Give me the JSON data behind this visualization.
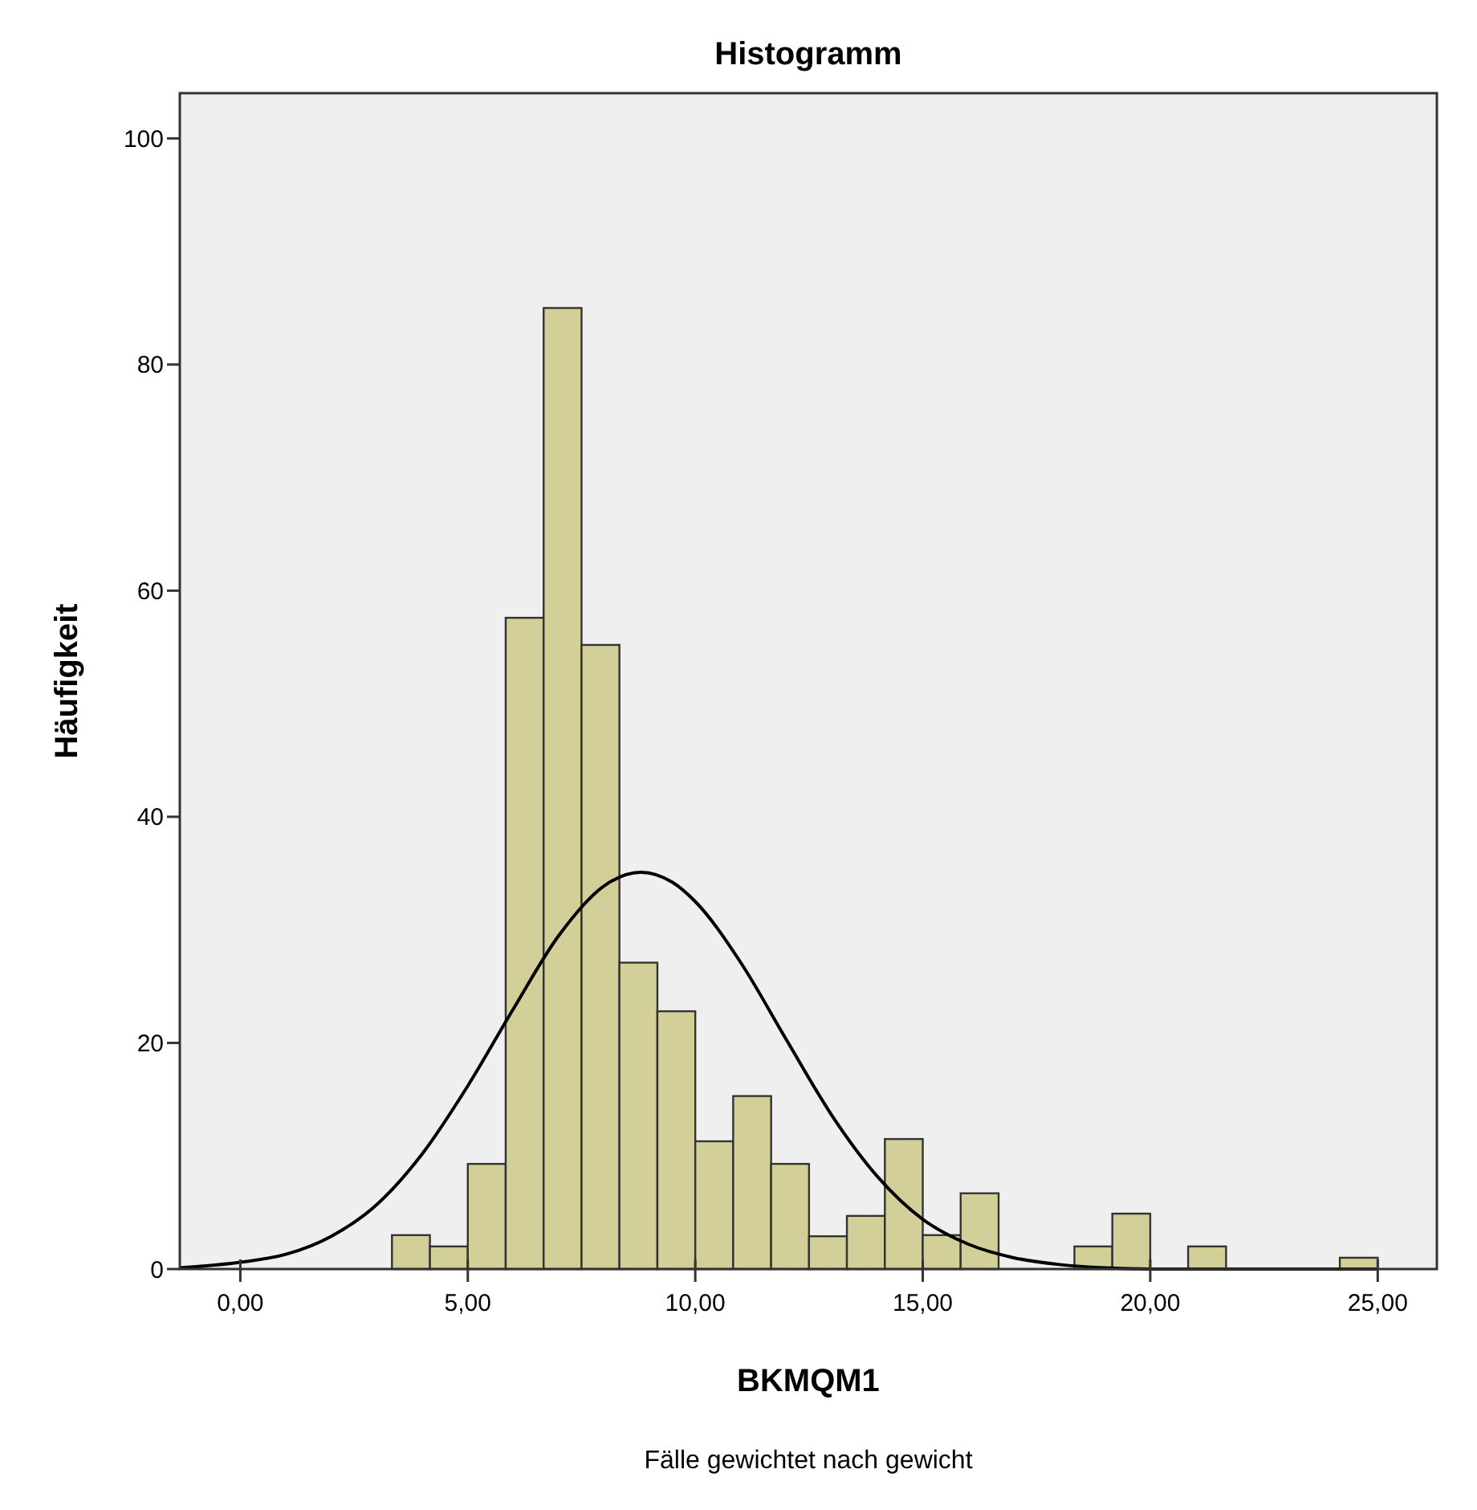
{
  "chart_data": {
    "type": "histogram",
    "title": "Histogramm",
    "xlabel": "BKMQM1",
    "ylabel": "Häufigkeit",
    "annotations": [
      "Fälle gewichtet nach gewicht"
    ],
    "bins": [
      3.333,
      4.167,
      5,
      5.833,
      6.667,
      7.5,
      8.333,
      9.167,
      10,
      10.833,
      11.667,
      12.5,
      13.333,
      14.167,
      15,
      15.833,
      16.667,
      17.5,
      18.333,
      19.167,
      20,
      20.833,
      21.667,
      22.5,
      23.333,
      24.167,
      25
    ],
    "values": [
      3,
      2,
      9.3,
      57.6,
      85,
      55.2,
      27.1,
      22.8,
      11.3,
      15.3,
      9.3,
      2.9,
      4.7,
      11.5,
      3,
      6.7,
      0,
      0,
      2,
      4.9,
      0,
      2,
      0,
      0,
      0,
      1
    ],
    "color": "#d3cf98",
    "series": [
      {
        "type": "line",
        "color": "#000000",
        "x": [
          -1.33,
          0,
          1,
          2,
          3,
          4,
          5,
          6,
          7,
          8,
          8.8,
          9.5,
          10,
          11,
          12,
          13,
          14,
          15,
          16,
          17,
          18,
          19,
          20,
          25
        ],
        "values": [
          0.1,
          0.6,
          1.3,
          2.9,
          5.7,
          10.2,
          16.2,
          23,
          29.5,
          33.9,
          35.1,
          34.2,
          32.5,
          27.1,
          20.3,
          13.6,
          8.2,
          4.4,
          2.2,
          1,
          0.4,
          0.1,
          0,
          0
        ]
      }
    ],
    "xlim": [
      -1.33,
      26.3
    ],
    "ylim": [
      0,
      104
    ],
    "xticks": [
      {
        "value": 0,
        "label": "0,00"
      },
      {
        "value": 5,
        "label": "5,00"
      },
      {
        "value": 10,
        "label": "10,00"
      },
      {
        "value": 15,
        "label": "15,00"
      },
      {
        "value": 20,
        "label": "20,00"
      },
      {
        "value": 25,
        "label": "25,00"
      }
    ],
    "yticks": [
      0,
      20,
      40,
      60,
      80,
      100
    ],
    "grid": false
  }
}
